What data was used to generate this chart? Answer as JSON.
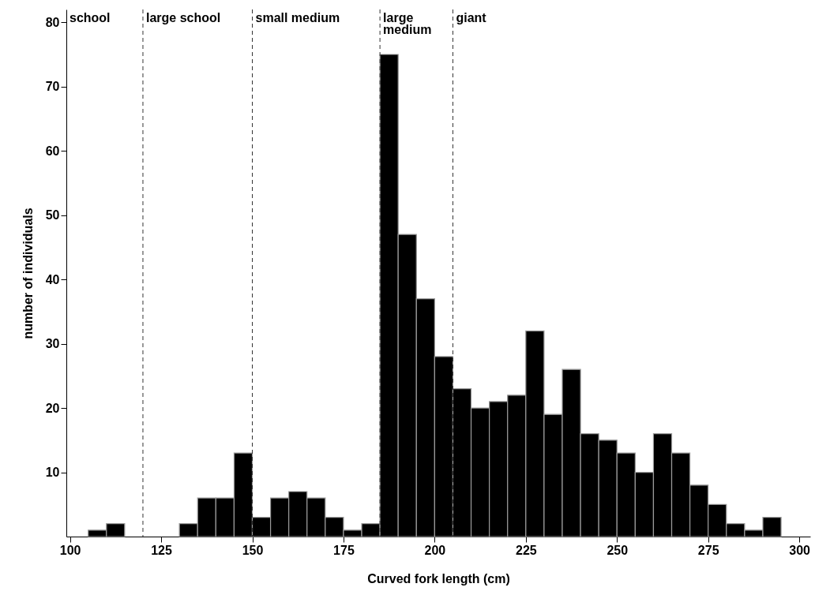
{
  "chart_data": {
    "type": "histogram",
    "xlabel": "Curved fork length (cm)",
    "ylabel": "number of individuals",
    "bins": [
      105,
      110,
      115,
      120,
      125,
      130,
      135,
      140,
      145,
      150,
      155,
      160,
      165,
      170,
      175,
      180,
      185,
      190,
      195,
      200,
      205,
      210,
      215,
      220,
      225,
      230,
      235,
      240,
      245,
      250,
      255,
      260,
      265,
      270,
      275,
      280,
      285,
      290,
      295
    ],
    "values": [
      1,
      2,
      0,
      0,
      0,
      2,
      6,
      6,
      13,
      3,
      6,
      7,
      6,
      3,
      1,
      2,
      75,
      47,
      37,
      28,
      23,
      20,
      21,
      22,
      32,
      19,
      26,
      16,
      15,
      13,
      10,
      16,
      13,
      8,
      5,
      2,
      1,
      3
    ],
    "color": "#000000",
    "xlim": [
      99,
      303
    ],
    "xticks": [
      100,
      125,
      150,
      175,
      200,
      225,
      250,
      275,
      300
    ],
    "ylim": [
      0,
      82
    ],
    "yticks": [
      10,
      20,
      30,
      40,
      50,
      60,
      70,
      80
    ],
    "ref_lines": [
      {
        "axis": "x",
        "value": 120,
        "line_style": "dashed",
        "color": "#333333",
        "label": "large school"
      },
      {
        "axis": "x",
        "value": 150,
        "line_style": "dashed",
        "color": "#333333",
        "label": "small medium"
      },
      {
        "axis": "x",
        "value": 185,
        "line_style": "dashed",
        "color": "#333333",
        "label": "large\nmedium"
      },
      {
        "axis": "x",
        "value": 205,
        "line_style": "dashed",
        "color": "#333333",
        "label": "giant"
      }
    ],
    "annotations": [
      "school"
    ]
  }
}
